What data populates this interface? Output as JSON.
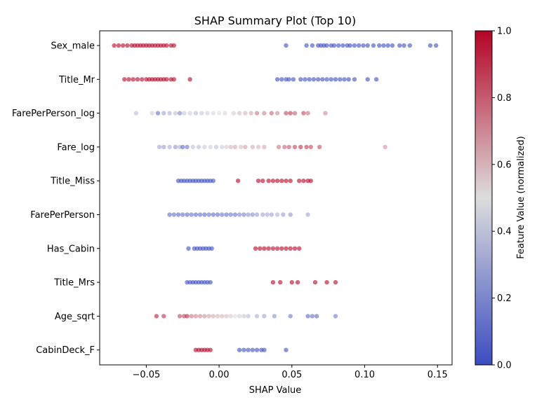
{
  "chart_data": {
    "type": "scatter",
    "title": "SHAP Summary Plot (Top 10)",
    "xlabel": "SHAP Value",
    "ylabel": "",
    "xlim": [
      -0.082,
      0.16
    ],
    "xticks": [
      -0.05,
      0.0,
      0.05,
      0.1,
      0.15
    ],
    "xtick_labels": [
      "−0.05",
      "0.00",
      "0.05",
      "0.10",
      "0.15"
    ],
    "grid": false,
    "features": [
      "Sex_male",
      "Title_Mr",
      "FarePerPerson_log",
      "Fare_log",
      "Title_Miss",
      "FarePerPerson",
      "Has_Cabin",
      "Title_Mrs",
      "Age_sqrt",
      "CabinDeck_F"
    ],
    "colorbar": {
      "label": "Feature Value (normalized)",
      "colormap": "coolwarm",
      "range": [
        0.0,
        1.0
      ],
      "ticks": [
        0.0,
        0.2,
        0.4,
        0.6,
        0.8,
        1.0
      ],
      "tick_labels": [
        "0.0",
        "0.2",
        "0.4",
        "0.6",
        "0.8",
        "1.0"
      ],
      "low_color": "#3b4cc0",
      "mid_color": "#dddddd",
      "high_color": "#b40426"
    },
    "series": [
      {
        "feature": "Sex_male",
        "points": [
          [
            -0.072,
            1
          ],
          [
            -0.069,
            1
          ],
          [
            -0.066,
            1
          ],
          [
            -0.063,
            1
          ],
          [
            -0.06,
            1
          ],
          [
            -0.058,
            1
          ],
          [
            -0.056,
            1
          ],
          [
            -0.054,
            1
          ],
          [
            -0.052,
            1
          ],
          [
            -0.05,
            1
          ],
          [
            -0.048,
            1
          ],
          [
            -0.046,
            1
          ],
          [
            -0.044,
            1
          ],
          [
            -0.042,
            1
          ],
          [
            -0.04,
            1
          ],
          [
            -0.038,
            1
          ],
          [
            -0.036,
            1
          ],
          [
            -0.033,
            1
          ],
          [
            -0.031,
            1
          ],
          [
            0.046,
            0
          ],
          [
            0.06,
            0
          ],
          [
            0.064,
            0
          ],
          [
            0.068,
            0
          ],
          [
            0.07,
            0
          ],
          [
            0.072,
            0
          ],
          [
            0.074,
            0
          ],
          [
            0.077,
            0
          ],
          [
            0.079,
            0
          ],
          [
            0.082,
            0
          ],
          [
            0.085,
            0
          ],
          [
            0.088,
            0
          ],
          [
            0.09,
            0
          ],
          [
            0.093,
            0
          ],
          [
            0.096,
            0
          ],
          [
            0.099,
            0
          ],
          [
            0.102,
            0
          ],
          [
            0.106,
            0
          ],
          [
            0.11,
            0
          ],
          [
            0.113,
            0
          ],
          [
            0.116,
            0
          ],
          [
            0.119,
            0
          ],
          [
            0.124,
            0
          ],
          [
            0.127,
            0
          ],
          [
            0.131,
            0
          ],
          [
            0.145,
            0
          ],
          [
            0.149,
            0
          ]
        ]
      },
      {
        "feature": "Title_Mr",
        "points": [
          [
            -0.065,
            1
          ],
          [
            -0.062,
            1
          ],
          [
            -0.059,
            1
          ],
          [
            -0.056,
            1
          ],
          [
            -0.053,
            1
          ],
          [
            -0.05,
            1
          ],
          [
            -0.048,
            1
          ],
          [
            -0.046,
            1
          ],
          [
            -0.044,
            1
          ],
          [
            -0.042,
            1
          ],
          [
            -0.04,
            1
          ],
          [
            -0.038,
            1
          ],
          [
            -0.036,
            1
          ],
          [
            -0.033,
            1
          ],
          [
            -0.031,
            1
          ],
          [
            -0.02,
            1
          ],
          [
            0.04,
            0
          ],
          [
            0.043,
            0
          ],
          [
            0.046,
            0
          ],
          [
            0.048,
            0
          ],
          [
            0.051,
            0
          ],
          [
            0.056,
            0
          ],
          [
            0.059,
            0
          ],
          [
            0.062,
            0
          ],
          [
            0.065,
            0
          ],
          [
            0.068,
            0
          ],
          [
            0.071,
            0
          ],
          [
            0.074,
            0
          ],
          [
            0.077,
            0
          ],
          [
            0.08,
            0
          ],
          [
            0.083,
            0
          ],
          [
            0.086,
            0
          ],
          [
            0.089,
            0
          ],
          [
            0.093,
            0
          ],
          [
            0.102,
            0
          ],
          [
            0.108,
            0
          ]
        ]
      },
      {
        "feature": "FarePerPerson_log",
        "points": [
          [
            -0.057,
            0.38
          ],
          [
            -0.046,
            0.45
          ],
          [
            -0.042,
            0.12
          ],
          [
            -0.038,
            0.3
          ],
          [
            -0.034,
            0.35
          ],
          [
            -0.03,
            0.4
          ],
          [
            -0.027,
            0.2
          ],
          [
            -0.024,
            0.42
          ],
          [
            -0.02,
            0.45
          ],
          [
            -0.016,
            0.38
          ],
          [
            -0.012,
            0.42
          ],
          [
            -0.008,
            0.45
          ],
          [
            -0.004,
            0.48
          ],
          [
            0.0,
            0.5
          ],
          [
            0.004,
            0.52
          ],
          [
            0.01,
            0.55
          ],
          [
            0.014,
            0.58
          ],
          [
            0.018,
            0.6
          ],
          [
            0.022,
            0.62
          ],
          [
            0.026,
            0.75
          ],
          [
            0.031,
            0.72
          ],
          [
            0.036,
            0.78
          ],
          [
            0.04,
            0.7
          ],
          [
            0.046,
            0.85
          ],
          [
            0.049,
            0.88
          ],
          [
            0.052,
            0.8
          ],
          [
            0.058,
            0.85
          ],
          [
            0.061,
            0.76
          ],
          [
            0.073,
            0.7
          ]
        ]
      },
      {
        "feature": "Fare_log",
        "points": [
          [
            -0.041,
            0.3
          ],
          [
            -0.038,
            0.28
          ],
          [
            -0.034,
            0.33
          ],
          [
            -0.03,
            0.25
          ],
          [
            -0.027,
            0.35
          ],
          [
            -0.025,
            0.1
          ],
          [
            -0.022,
            0.15
          ],
          [
            -0.018,
            0.4
          ],
          [
            -0.014,
            0.38
          ],
          [
            -0.01,
            0.42
          ],
          [
            -0.006,
            0.45
          ],
          [
            -0.002,
            0.4
          ],
          [
            0.002,
            0.43
          ],
          [
            0.005,
            0.55
          ],
          [
            0.008,
            0.6
          ],
          [
            0.011,
            0.62
          ],
          [
            0.015,
            0.58
          ],
          [
            0.018,
            0.65
          ],
          [
            0.023,
            0.62
          ],
          [
            0.027,
            0.6
          ],
          [
            0.031,
            0.63
          ],
          [
            0.041,
            0.75
          ],
          [
            0.045,
            0.78
          ],
          [
            0.048,
            0.82
          ],
          [
            0.052,
            0.86
          ],
          [
            0.056,
            0.9
          ],
          [
            0.06,
            0.88
          ],
          [
            0.063,
            0.85
          ],
          [
            0.069,
            0.84
          ],
          [
            0.114,
            0.68
          ]
        ]
      },
      {
        "feature": "Title_Miss",
        "points": [
          [
            -0.028,
            0
          ],
          [
            -0.026,
            0
          ],
          [
            -0.024,
            0
          ],
          [
            -0.022,
            0
          ],
          [
            -0.02,
            0
          ],
          [
            -0.018,
            0
          ],
          [
            -0.016,
            0
          ],
          [
            -0.014,
            0
          ],
          [
            -0.012,
            0
          ],
          [
            -0.01,
            0
          ],
          [
            -0.008,
            0
          ],
          [
            -0.006,
            0
          ],
          [
            -0.004,
            0
          ],
          [
            0.013,
            1
          ],
          [
            0.027,
            1
          ],
          [
            0.03,
            1
          ],
          [
            0.034,
            1
          ],
          [
            0.037,
            1
          ],
          [
            0.04,
            1
          ],
          [
            0.043,
            1
          ],
          [
            0.046,
            1
          ],
          [
            0.049,
            1
          ],
          [
            0.055,
            1
          ],
          [
            0.058,
            1
          ],
          [
            0.061,
            1
          ],
          [
            0.063,
            1
          ]
        ]
      },
      {
        "feature": "FarePerPerson",
        "points": [
          [
            -0.034,
            0.1
          ],
          [
            -0.031,
            0.12
          ],
          [
            -0.028,
            0.1
          ],
          [
            -0.025,
            0.11
          ],
          [
            -0.022,
            0.1
          ],
          [
            -0.019,
            0.12
          ],
          [
            -0.016,
            0.1
          ],
          [
            -0.013,
            0.11
          ],
          [
            -0.01,
            0.1
          ],
          [
            -0.007,
            0.12
          ],
          [
            -0.004,
            0.1
          ],
          [
            -0.001,
            0.11
          ],
          [
            0.002,
            0.13
          ],
          [
            0.005,
            0.12
          ],
          [
            0.008,
            0.15
          ],
          [
            0.011,
            0.14
          ],
          [
            0.014,
            0.2
          ],
          [
            0.017,
            0.18
          ],
          [
            0.02,
            0.25
          ],
          [
            0.023,
            0.22
          ],
          [
            0.026,
            0.28
          ],
          [
            0.03,
            0.3
          ],
          [
            0.033,
            0.32
          ],
          [
            0.036,
            0.3
          ],
          [
            0.04,
            0.35
          ],
          [
            0.044,
            0.28
          ],
          [
            0.049,
            0.25
          ],
          [
            0.061,
            0.3
          ]
        ]
      },
      {
        "feature": "Has_Cabin",
        "points": [
          [
            -0.021,
            0
          ],
          [
            -0.017,
            0
          ],
          [
            -0.015,
            0
          ],
          [
            -0.013,
            0
          ],
          [
            -0.011,
            0
          ],
          [
            -0.009,
            0
          ],
          [
            -0.007,
            0
          ],
          [
            -0.005,
            0
          ],
          [
            0.025,
            1
          ],
          [
            0.028,
            1
          ],
          [
            0.031,
            1
          ],
          [
            0.034,
            1
          ],
          [
            0.037,
            1
          ],
          [
            0.04,
            1
          ],
          [
            0.043,
            1
          ],
          [
            0.046,
            1
          ],
          [
            0.049,
            1
          ],
          [
            0.052,
            1
          ],
          [
            0.055,
            1
          ]
        ]
      },
      {
        "feature": "Title_Mrs",
        "points": [
          [
            -0.022,
            0
          ],
          [
            -0.02,
            0
          ],
          [
            -0.018,
            0
          ],
          [
            -0.016,
            0
          ],
          [
            -0.014,
            0
          ],
          [
            -0.012,
            0
          ],
          [
            -0.01,
            0
          ],
          [
            -0.008,
            0
          ],
          [
            -0.006,
            0
          ],
          [
            0.037,
            1
          ],
          [
            0.042,
            1
          ],
          [
            0.05,
            1
          ],
          [
            0.054,
            1
          ],
          [
            0.066,
            1
          ],
          [
            0.074,
            1
          ],
          [
            0.08,
            1
          ]
        ]
      },
      {
        "feature": "Age_sqrt",
        "points": [
          [
            -0.043,
            0.95
          ],
          [
            -0.038,
            0.9
          ],
          [
            -0.027,
            0.85
          ],
          [
            -0.024,
            0.88
          ],
          [
            -0.022,
            0.92
          ],
          [
            -0.019,
            0.75
          ],
          [
            -0.016,
            0.72
          ],
          [
            -0.013,
            0.7
          ],
          [
            -0.01,
            0.68
          ],
          [
            -0.007,
            0.65
          ],
          [
            -0.004,
            0.63
          ],
          [
            -0.001,
            0.6
          ],
          [
            0.002,
            0.6
          ],
          [
            0.005,
            0.58
          ],
          [
            0.008,
            0.55
          ],
          [
            0.011,
            0.5
          ],
          [
            0.014,
            0.45
          ],
          [
            0.017,
            0.42
          ],
          [
            0.02,
            0.38
          ],
          [
            0.026,
            0.35
          ],
          [
            0.031,
            0.3
          ],
          [
            0.038,
            0.25
          ],
          [
            0.049,
            0.15
          ],
          [
            0.061,
            0.1
          ],
          [
            0.064,
            0.12
          ],
          [
            0.067,
            0.1
          ],
          [
            0.08,
            0.15
          ]
        ]
      },
      {
        "feature": "CabinDeck_F",
        "points": [
          [
            -0.016,
            1
          ],
          [
            -0.014,
            1
          ],
          [
            -0.012,
            1
          ],
          [
            -0.01,
            1
          ],
          [
            -0.008,
            1
          ],
          [
            -0.006,
            1
          ],
          [
            0.014,
            0
          ],
          [
            0.017,
            0
          ],
          [
            0.02,
            0
          ],
          [
            0.023,
            0
          ],
          [
            0.026,
            0
          ],
          [
            0.029,
            0
          ],
          [
            0.031,
            0
          ],
          [
            0.046,
            0
          ]
        ]
      }
    ]
  }
}
